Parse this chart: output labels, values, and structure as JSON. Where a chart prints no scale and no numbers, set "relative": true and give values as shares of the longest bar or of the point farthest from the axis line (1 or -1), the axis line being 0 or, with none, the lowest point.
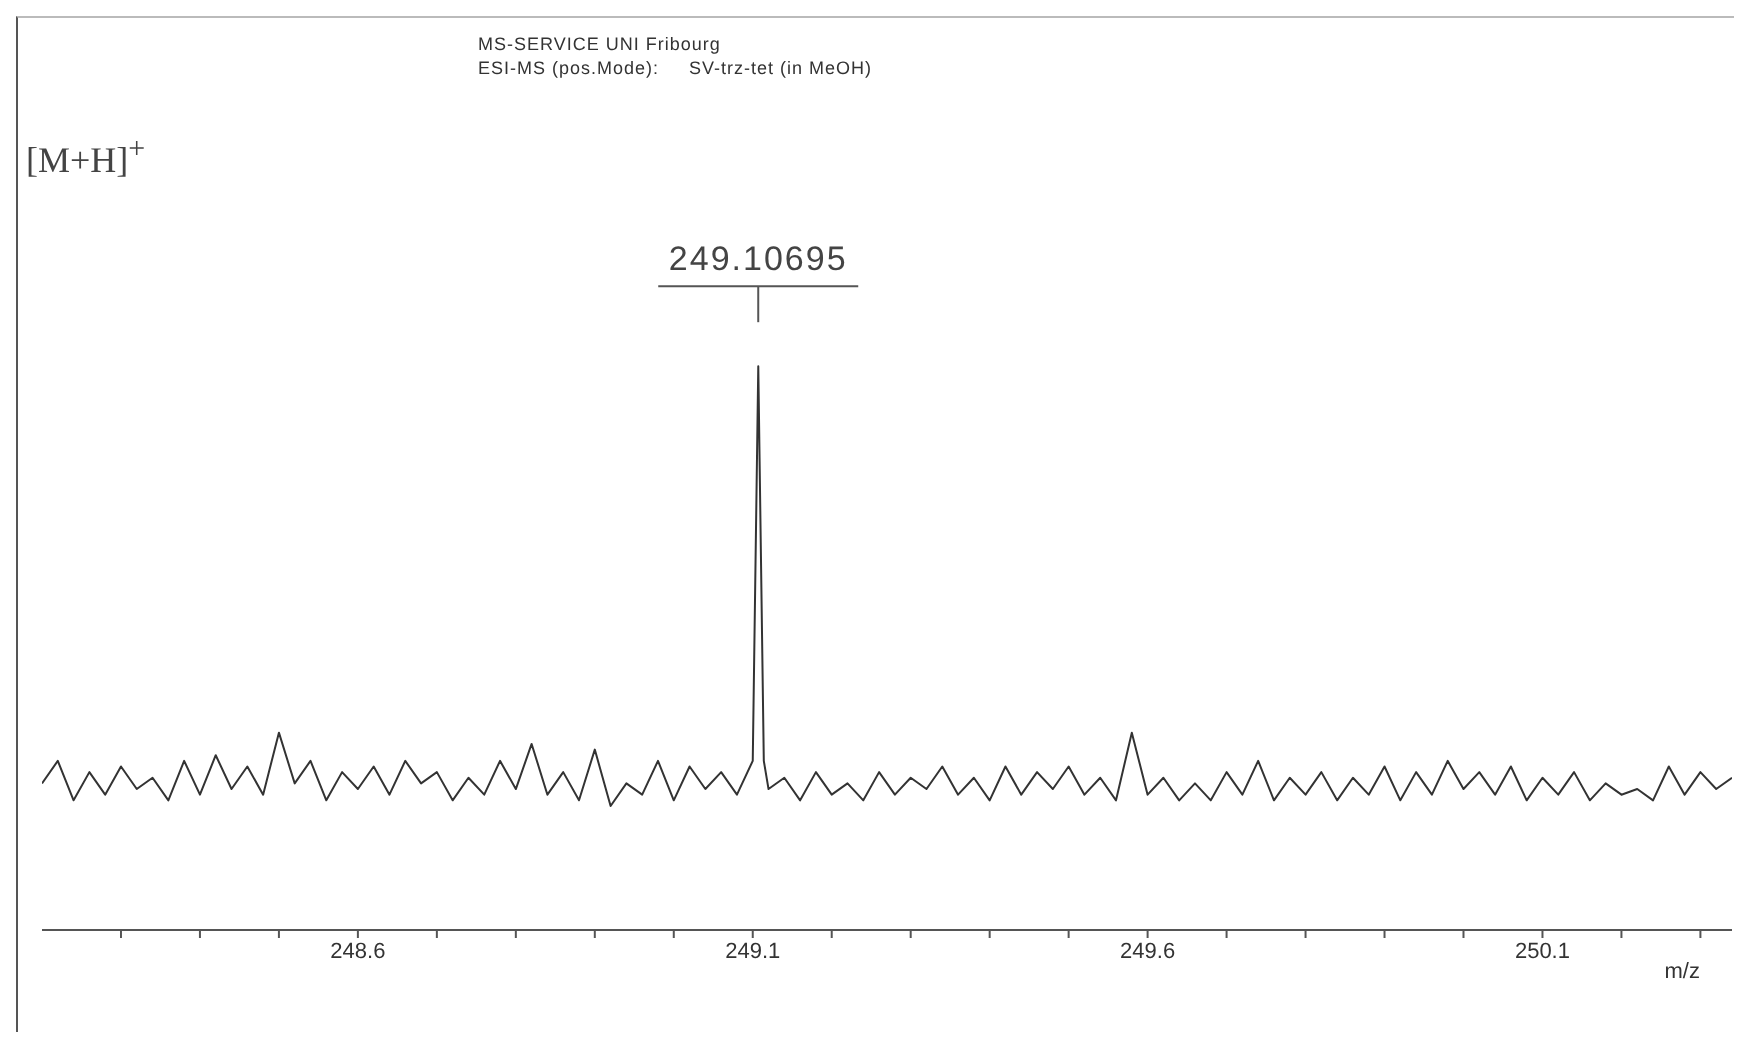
{
  "chart_data": {
    "type": "line",
    "title": "MS-SERVICE  UNI Fribourg",
    "subtitle": "ESI-MS (pos.Mode):     SV-trz-tet (in MeOH)",
    "xlabel": "m/z",
    "relative": true,
    "annotations": [
      "[M+H]$^{+}$",
      {
        "text": "249.10695",
        "x": 249.10695,
        "y": 1
      }
    ],
    "xlim": [
      248.2,
      250.34
    ],
    "xticks": [
      {
        "value": 248.3,
        "label": null
      },
      {
        "value": 248.4,
        "label": null
      },
      {
        "value": 248.5,
        "label": null
      },
      248.6,
      {
        "value": 248.7,
        "label": null
      },
      {
        "value": 248.8,
        "label": null
      },
      {
        "value": 248.9,
        "label": null
      },
      {
        "value": 249.0,
        "label": null
      },
      249.1,
      {
        "value": 249.2,
        "label": null
      },
      {
        "value": 249.3,
        "label": null
      },
      {
        "value": 249.4,
        "label": null
      },
      {
        "value": 249.5,
        "label": null
      },
      249.6,
      {
        "value": 249.7,
        "label": null
      },
      {
        "value": 249.8,
        "label": null
      },
      {
        "value": 249.9,
        "label": null
      },
      {
        "value": 250.0,
        "label": null
      },
      250.1,
      {
        "value": 250.2,
        "label": null
      },
      {
        "value": 250.3,
        "label": null
      }
    ],
    "x": [
      248.2,
      248.22,
      248.24,
      248.26,
      248.28,
      248.3,
      248.32,
      248.34,
      248.36,
      248.38,
      248.4,
      248.42,
      248.44,
      248.46,
      248.48,
      248.5,
      248.52,
      248.54,
      248.56,
      248.58,
      248.6,
      248.62,
      248.64,
      248.66,
      248.68,
      248.7,
      248.72,
      248.74,
      248.76,
      248.78,
      248.8,
      248.82,
      248.84,
      248.86,
      248.88,
      248.9,
      248.92,
      248.94,
      248.96,
      248.98,
      249.0,
      249.02,
      249.04,
      249.06,
      249.08,
      249.1,
      249.107,
      249.114,
      249.12,
      249.14,
      249.16,
      249.18,
      249.2,
      249.22,
      249.24,
      249.26,
      249.28,
      249.3,
      249.32,
      249.34,
      249.36,
      249.38,
      249.4,
      249.42,
      249.44,
      249.46,
      249.48,
      249.5,
      249.52,
      249.54,
      249.56,
      249.58,
      249.6,
      249.62,
      249.64,
      249.66,
      249.68,
      249.7,
      249.72,
      249.74,
      249.76,
      249.78,
      249.8,
      249.82,
      249.84,
      249.86,
      249.88,
      249.9,
      249.92,
      249.94,
      249.96,
      249.98,
      250.0,
      250.02,
      250.04,
      250.06,
      250.08,
      250.1,
      250.12,
      250.14,
      250.16,
      250.18,
      250.2,
      250.22,
      250.24,
      250.26,
      250.28,
      250.3,
      250.32,
      250.34
    ],
    "series": [
      {
        "color": "#333333",
        "values": [
          0.26,
          0.3,
          0.23,
          0.28,
          0.24,
          0.29,
          0.25,
          0.27,
          0.23,
          0.3,
          0.24,
          0.31,
          0.25,
          0.29,
          0.24,
          0.35,
          0.26,
          0.3,
          0.23,
          0.28,
          0.25,
          0.29,
          0.24,
          0.3,
          0.26,
          0.28,
          0.23,
          0.27,
          0.24,
          0.3,
          0.25,
          0.33,
          0.24,
          0.28,
          0.23,
          0.32,
          0.22,
          0.26,
          0.24,
          0.3,
          0.23,
          0.29,
          0.25,
          0.28,
          0.24,
          0.3,
          1,
          0.3,
          0.25,
          0.27,
          0.23,
          0.28,
          0.24,
          0.26,
          0.23,
          0.28,
          0.24,
          0.27,
          0.25,
          0.29,
          0.24,
          0.27,
          0.23,
          0.29,
          0.24,
          0.28,
          0.25,
          0.29,
          0.24,
          0.27,
          0.23,
          0.35,
          0.24,
          0.27,
          0.23,
          0.26,
          0.23,
          0.28,
          0.24,
          0.3,
          0.23,
          0.27,
          0.24,
          0.28,
          0.23,
          0.27,
          0.24,
          0.29,
          0.23,
          0.28,
          0.24,
          0.3,
          0.25,
          0.28,
          0.24,
          0.29,
          0.23,
          0.27,
          0.24,
          0.28,
          0.23,
          0.26,
          0.24,
          0.25,
          0.23,
          0.29,
          0.24,
          0.28,
          0.25,
          0.27
        ]
      }
    ]
  }
}
